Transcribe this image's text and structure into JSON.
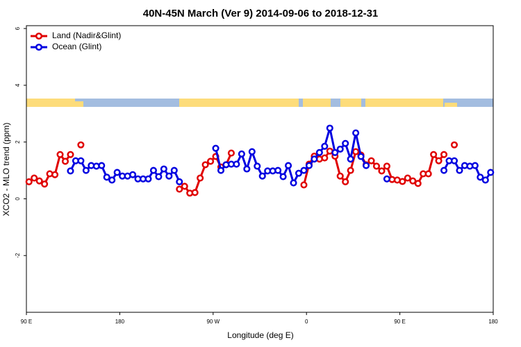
{
  "chart_data": {
    "type": "line",
    "title": "40N-45N March (Ver 9)   2014-09-06 to 2018-12-31",
    "x_label": "Longitude (deg E)",
    "y_label": "XCO2 - MLO trend (ppm)",
    "x": [
      92.5,
      97.5,
      102.5,
      107.5,
      112.5,
      117.5,
      122.5,
      127.5,
      132.5,
      137.5,
      142.5,
      147.5,
      152.5,
      157.5,
      162.5,
      167.5,
      172.5,
      177.5,
      182.5,
      187.5,
      192.5,
      197.5,
      202.5,
      207.5,
      212.5,
      217.5,
      222.5,
      227.5,
      232.5,
      237.5,
      242.5,
      247.5,
      252.5,
      257.5,
      262.5,
      267.5,
      272.5,
      277.5,
      282.5,
      287.5,
      292.5,
      297.5,
      302.5,
      307.5,
      312.5,
      317.5,
      322.5,
      327.5,
      332.5,
      337.5,
      342.5,
      347.5,
      352.5,
      357.5,
      362.5,
      367.5,
      372.5,
      377.5,
      382.5,
      387.5,
      392.5,
      397.5,
      402.5,
      407.5,
      412.5,
      417.5,
      422.5,
      427.5,
      432.5,
      437.5,
      442.5,
      447.5,
      452.5,
      457.5,
      462.5,
      467.5,
      472.5,
      477.5,
      482.5,
      487.5,
      492.5,
      497.5,
      502.5,
      507.5,
      512.5,
      517.5,
      522.5,
      527.5,
      532.5,
      537.5
    ],
    "series": [
      {
        "name": "Land (Nadir&Glint)",
        "color": "#e00000",
        "values": [
          0.6,
          0.73,
          0.63,
          0.52,
          0.88,
          0.85,
          1.56,
          1.32,
          1.56,
          null,
          1.9,
          null,
          null,
          null,
          null,
          null,
          null,
          null,
          null,
          null,
          null,
          null,
          null,
          null,
          null,
          null,
          null,
          null,
          null,
          0.34,
          0.44,
          0.2,
          0.22,
          0.73,
          1.2,
          1.32,
          1.49,
          1.12,
          1.2,
          1.61,
          null,
          null,
          null,
          null,
          null,
          null,
          null,
          null,
          null,
          null,
          null,
          null,
          null,
          0.49,
          1.22,
          1.5,
          1.4,
          1.44,
          1.68,
          1.5,
          0.8,
          0.6,
          1.0,
          1.66,
          1.54,
          1.2,
          1.34,
          1.15,
          0.98,
          1.15,
          0.68,
          0.66,
          0.61,
          0.73,
          0.63,
          0.54,
          0.88,
          0.88,
          1.56,
          1.34,
          1.56,
          null,
          1.9,
          null,
          null,
          null,
          null,
          null,
          null,
          null
        ]
      },
      {
        "name": "Ocean (Glint)",
        "color": "#0000e0",
        "values": [
          null,
          null,
          null,
          null,
          null,
          null,
          null,
          null,
          0.98,
          1.34,
          1.34,
          1.0,
          1.17,
          1.15,
          1.17,
          0.76,
          0.66,
          0.93,
          0.8,
          0.8,
          0.85,
          0.7,
          0.7,
          0.7,
          1.0,
          0.78,
          1.05,
          0.8,
          1.0,
          0.6,
          null,
          null,
          null,
          null,
          null,
          null,
          1.78,
          1.0,
          1.2,
          1.22,
          1.22,
          1.58,
          1.05,
          1.66,
          1.15,
          0.8,
          0.98,
          0.98,
          1.0,
          0.78,
          1.17,
          0.56,
          0.9,
          1.0,
          1.17,
          1.4,
          1.63,
          1.85,
          2.49,
          1.63,
          1.75,
          1.95,
          1.4,
          2.32,
          1.49,
          1.17,
          null,
          null,
          null,
          0.7,
          null,
          null,
          null,
          null,
          null,
          null,
          null,
          null,
          null,
          null,
          1.0,
          1.34,
          1.34,
          1.0,
          1.17,
          1.15,
          1.17,
          0.76,
          0.66,
          0.93
        ]
      }
    ],
    "xlim": [
      90,
      540
    ],
    "xticks": [
      {
        "value": 90,
        "label": "90 E"
      },
      180,
      {
        "value": 270,
        "label": "90 W"
      },
      {
        "value": 360,
        "label": "0"
      },
      {
        "value": 450,
        "label": "90 E"
      },
      {
        "value": 540,
        "label": "180"
      }
    ],
    "ylim": [
      -4,
      6.1
    ],
    "yticks": [
      -2,
      0,
      2,
      4,
      6
    ],
    "legend": "top-left"
  }
}
